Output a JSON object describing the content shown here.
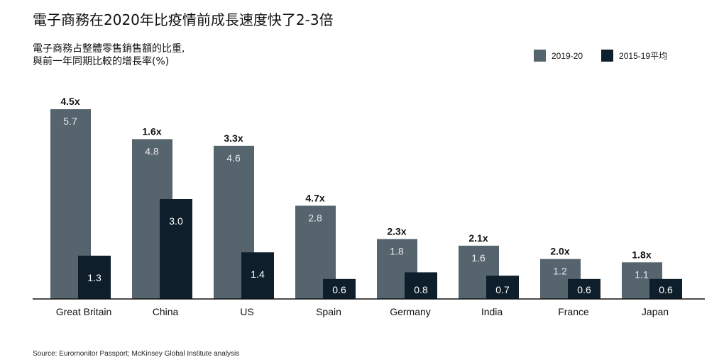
{
  "title": "電子商務在2020年比疫情前成長速度快了2-3倍",
  "subtitle": "電子商務占整體零售銷售額的比重,\n與前一年同期比較的增長率(%)",
  "source": "Source: Euromonitor Passport; McKinsey Global Institute analysis",
  "colors": {
    "series_2019_20": "#56646e",
    "series_2015_19": "#0e1f2b",
    "axis": "#111111"
  },
  "chart_data": {
    "type": "bar",
    "categories": [
      "Great Britain",
      "China",
      "US",
      "Spain",
      "Germany",
      "India",
      "France",
      "Japan"
    ],
    "series": [
      {
        "name": "2019-20",
        "values": [
          5.7,
          4.8,
          4.6,
          2.8,
          1.8,
          1.6,
          1.2,
          1.1
        ]
      },
      {
        "name": "2015-19平均",
        "values": [
          1.3,
          3.0,
          1.4,
          0.6,
          0.8,
          0.7,
          0.6,
          0.6
        ]
      }
    ],
    "multipliers": [
      "4.5x",
      "1.6x",
      "3.3x",
      "4.7x",
      "2.3x",
      "2.1x",
      "2.0x",
      "1.8x"
    ],
    "legend_position": "top-right",
    "grid": false
  }
}
